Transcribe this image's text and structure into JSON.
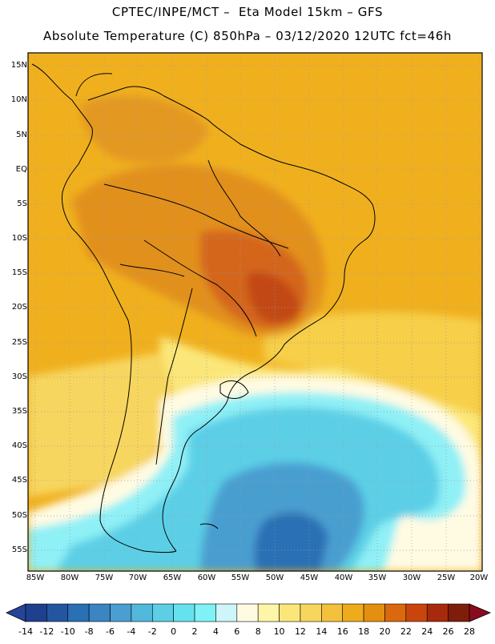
{
  "title": {
    "line1": "CPTEC/INPE/MCT –  Eta Model 15km – GFS",
    "line2": "Absolute Temperature (C) 850hPa – 03/12/2020 12UTC fct=46h"
  },
  "map": {
    "lat_labels": [
      "15N",
      "10N",
      "5N",
      "EQ",
      "5S",
      "10S",
      "15S",
      "20S",
      "25S",
      "30S",
      "35S",
      "40S",
      "45S",
      "50S",
      "55S"
    ],
    "lon_labels": [
      "85W",
      "80W",
      "75W",
      "70W",
      "65W",
      "60W",
      "55W",
      "50W",
      "45W",
      "40W",
      "35W",
      "30W",
      "25W",
      "20W"
    ]
  },
  "colorbar": {
    "labels": [
      "-14",
      "-12",
      "-10",
      "-8",
      "-6",
      "-4",
      "-2",
      "0",
      "2",
      "4",
      "6",
      "8",
      "10",
      "12",
      "14",
      "16",
      "18",
      "20",
      "22",
      "24",
      "26",
      "28"
    ],
    "colors": [
      "#1f3f8f",
      "#2456a0",
      "#2b6fb4",
      "#3a85c2",
      "#4a9ed0",
      "#52b8dc",
      "#5ccfe6",
      "#66e2ef",
      "#7ef2f6",
      "#cdf5fa",
      "#fffbe3",
      "#fff5a8",
      "#fbe779",
      "#f7d65e",
      "#f3c13c",
      "#eeac1c",
      "#e58f10",
      "#d9680e",
      "#c8460d",
      "#a82a0c",
      "#7f1d0b"
    ],
    "low_color": "#27449a",
    "high_color": "#8a0b1d"
  }
}
